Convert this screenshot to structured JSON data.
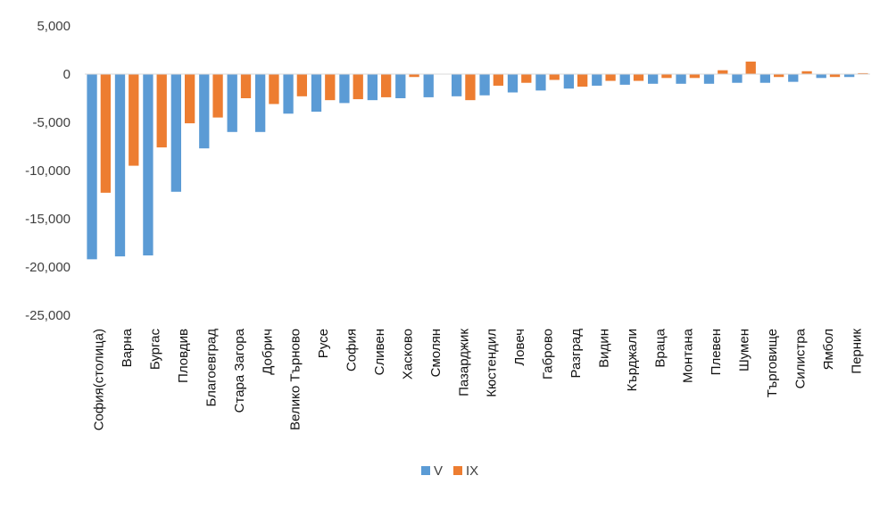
{
  "chart_data": {
    "type": "bar",
    "categories": [
      "София(столица)",
      "Варна",
      "Бургас",
      "Пловдив",
      "Благоевград",
      "Стара Загора",
      "Добрич",
      "Велико Търново",
      "Русе",
      "София",
      "Сливен",
      "Хасково",
      "Смолян",
      "Пазарджик",
      "Кюстендил",
      "Ловеч",
      "Габрово",
      "Разград",
      "Видин",
      "Кърджали",
      "Враца",
      "Монтана",
      "Плевен",
      "Шумен",
      "Търговище",
      "Силистра",
      "Ямбол",
      "Перник"
    ],
    "series": [
      {
        "name": "V",
        "color": "#5B9BD5",
        "values": [
          -19200,
          -18900,
          -18800,
          -12200,
          -7700,
          -6000,
          -6000,
          -4100,
          -3900,
          -3000,
          -2700,
          -2500,
          -2400,
          -2300,
          -2200,
          -1900,
          -1700,
          -1500,
          -1200,
          -1100,
          -1000,
          -1000,
          -1000,
          -900,
          -900,
          -800,
          -400,
          -300
        ]
      },
      {
        "name": "IX",
        "color": "#ED7D31",
        "values": [
          -12300,
          -9500,
          -7600,
          -5100,
          -4500,
          -2500,
          -3100,
          -2300,
          -2700,
          -2600,
          -2400,
          -300,
          0,
          -2700,
          -1200,
          -900,
          -600,
          -1300,
          -700,
          -700,
          -400,
          -400,
          400,
          1300,
          -300,
          300,
          -300,
          100
        ]
      }
    ],
    "y_ticks": [
      "5,000",
      "0",
      "-5,000",
      "-10,000",
      "-15,000",
      "-20,000",
      "-25,000"
    ],
    "ylim": [
      -25000,
      5000
    ],
    "grid": false,
    "legend_position": "bottom",
    "title": "",
    "xlabel": "",
    "ylabel": ""
  }
}
